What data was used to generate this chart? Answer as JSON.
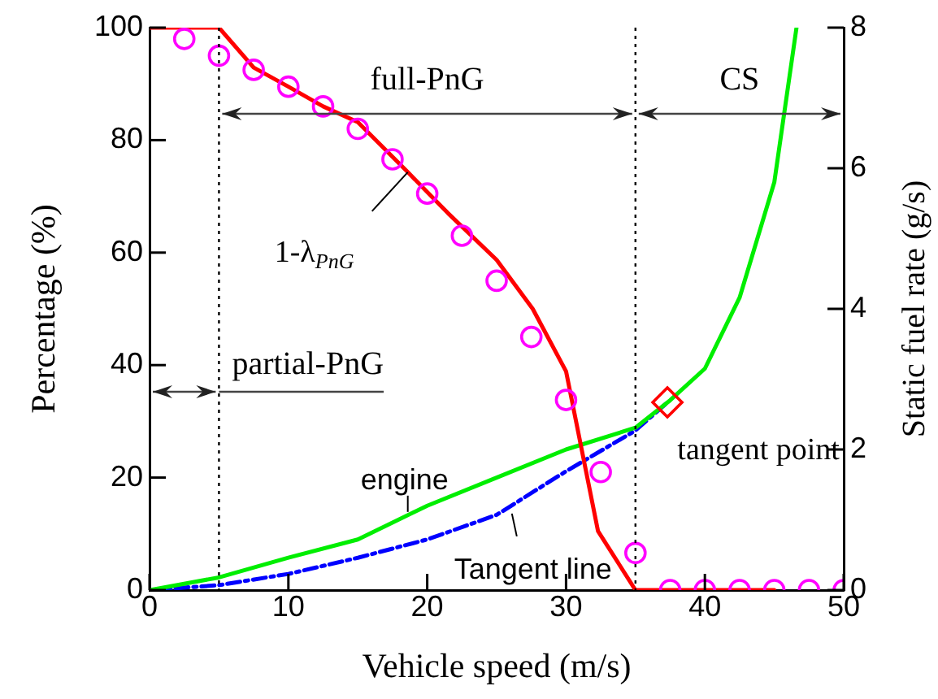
{
  "chart_data": {
    "type": "line",
    "xlabel": "Vehicle speed (m/s)",
    "ylabel": "Percentage (%)",
    "y2label": "Static fuel rate (g/s)",
    "xlim": [
      0,
      50
    ],
    "xticks": [
      0,
      10,
      20,
      30,
      40,
      50
    ],
    "ylim": [
      0,
      100
    ],
    "yticks": [
      0,
      20,
      40,
      60,
      80,
      100
    ],
    "y2lim": [
      0,
      8
    ],
    "y2ticks": [
      0,
      2,
      4,
      6,
      8
    ],
    "series": [
      {
        "color": "#ff0000",
        "marker": "none",
        "line_style": "solid",
        "x": [
          0,
          1,
          2.5,
          5,
          7.5,
          10,
          12.5,
          15,
          18.6,
          21.5,
          25,
          27.6,
          30,
          32.3,
          35,
          45
        ],
        "values": [
          100,
          100,
          100,
          100,
          92.9,
          89.5,
          86,
          83.2,
          74.3,
          67,
          58.7,
          50,
          38.9,
          10.5,
          0,
          0
        ]
      },
      {
        "type": "scatter",
        "color": "#ff00ff",
        "marker": "circle",
        "x": [
          2.5,
          5,
          7.5,
          10,
          12.5,
          15,
          17.5,
          20,
          22.5,
          25,
          27.5,
          30,
          32.5,
          35,
          37.5,
          40,
          42.5,
          45,
          47.5,
          50
        ],
        "values": [
          98,
          95,
          92.5,
          89.5,
          86,
          82,
          76.6,
          70.5,
          63,
          55,
          45,
          33.8,
          21,
          6.6,
          0,
          0,
          0,
          0,
          0,
          0
        ]
      },
      {
        "color": "#00ee00",
        "marker": "none",
        "line_style": "solid",
        "axis": "y2",
        "x": [
          0,
          5,
          10,
          15,
          20,
          25,
          30,
          35,
          37.5,
          40,
          42.5,
          45,
          46.6
        ],
        "values": [
          0,
          0.18,
          0.46,
          0.72,
          1.2,
          1.6,
          2.0,
          2.31,
          2.7,
          3.15,
          4.16,
          5.8,
          8
        ]
      },
      {
        "color": "#0000ff",
        "marker": "none",
        "line_style": "dashdot",
        "axis": "y2",
        "x": [
          0,
          5,
          10,
          15,
          20,
          25,
          30,
          35,
          37.3
        ],
        "values": [
          0,
          0.07,
          0.23,
          0.46,
          0.72,
          1.07,
          1.69,
          2.27,
          2.67
        ]
      },
      {
        "type": "scatter",
        "color": "#ff0000",
        "marker": "diamond",
        "axis": "y2",
        "x": [
          37.3
        ],
        "values": [
          2.67
        ]
      }
    ],
    "ref_lines": [
      {
        "axis": "x",
        "value": 5,
        "line_style": "dotted"
      },
      {
        "axis": "x",
        "value": 35,
        "line_style": "dotted"
      }
    ],
    "annotations": [
      "partial-PnG",
      "full-PnG",
      "CS",
      {
        "text": "1-λ$_{PnG}$",
        "x": 18.6,
        "y": 74.3
      },
      {
        "text": "engine",
        "x": 18.6,
        "y": 13.9
      },
      {
        "text": "Tangent line",
        "x": 26.1,
        "y": 13.6
      },
      {
        "text": "tangent point",
        "x": 37.3,
        "y": 33.4
      }
    ]
  }
}
